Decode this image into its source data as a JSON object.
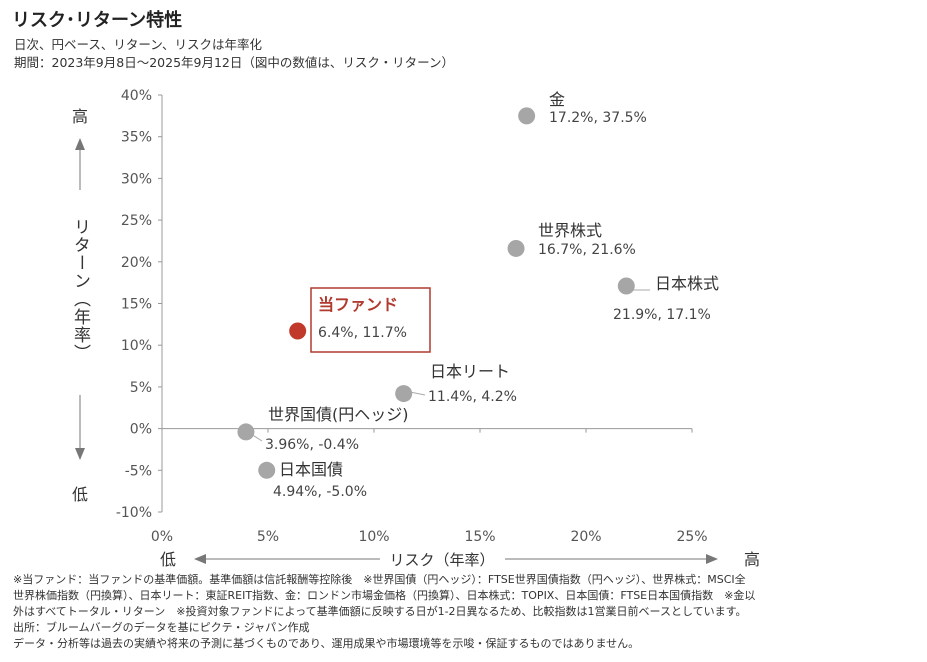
{
  "header": {
    "title": "リスク･リターン特性",
    "subtitle_1": "日次、円ベース、リターン、リスクは年率化",
    "subtitle_2": "期間：2023年9月8日～2025年9月12日（図中の数値は、リスク・リターン）"
  },
  "chart_data": {
    "type": "scatter",
    "xlabel": "リスク（年率）",
    "ylabel": "リターン（年率）",
    "x_low_label": "低",
    "x_high_label": "高",
    "y_high_label": "高",
    "y_low_label": "低",
    "xlim": [
      0,
      25
    ],
    "ylim": [
      -10,
      40
    ],
    "x_ticks": [
      "0%",
      "5%",
      "10%",
      "15%",
      "20%",
      "25%"
    ],
    "y_ticks": [
      "-10%",
      "-5%",
      "0%",
      "5%",
      "10%",
      "15%",
      "20%",
      "25%",
      "30%",
      "35%",
      "40%"
    ],
    "points": [
      {
        "name": "金",
        "value_label": "17.2%, 37.5%",
        "x": 17.2,
        "y": 37.5,
        "color": "#a6a6a6"
      },
      {
        "name": "世界株式",
        "value_label": "16.7%, 21.6%",
        "x": 16.7,
        "y": 21.6,
        "color": "#a6a6a6"
      },
      {
        "name": "日本株式",
        "value_label": "21.9%, 17.1%",
        "x": 21.9,
        "y": 17.1,
        "color": "#a6a6a6"
      },
      {
        "name": "当ファンド",
        "value_label": "6.4%, 11.7%",
        "x": 6.4,
        "y": 11.7,
        "color": "#c0392b",
        "highlight": true
      },
      {
        "name": "日本リート",
        "value_label": "11.4%, 4.2%",
        "x": 11.4,
        "y": 4.2,
        "color": "#a6a6a6"
      },
      {
        "name": "世界国債(円ヘッジ)",
        "value_label": "3.96%, -0.4%",
        "x": 3.96,
        "y": -0.4,
        "color": "#a6a6a6"
      },
      {
        "name": "日本国債",
        "value_label": "4.94%, -5.0%",
        "x": 4.94,
        "y": -5.0,
        "color": "#a6a6a6"
      }
    ]
  },
  "notes": {
    "line_1": "※当ファンド：当ファンドの基準価額。基準価額は信託報酬等控除後　※世界国債（円ヘッジ）：FTSE世界国債指数（円ヘッジ）、世界株式：MSCI全",
    "line_2": "世界株価指数（円換算）、日本リート：東証REIT指数、金：ロンドン市場金価格（円換算）、日本株式：TOPIX、日本国債：FTSE日本国債指数　※金以",
    "line_3": "外はすべてトータル・リターン　※投資対象ファンドによって基準価額に反映する日が1-2日異なるため、比較指数は1営業日前ベースとしています。",
    "line_4": "出所：ブルームバーグのデータを基にピクテ・ジャパン作成",
    "line_5": "データ・分析等は過去の実績や将来の予測に基づくものであり、運用成果や市場環境等を示唆・保証するものではありません。"
  }
}
